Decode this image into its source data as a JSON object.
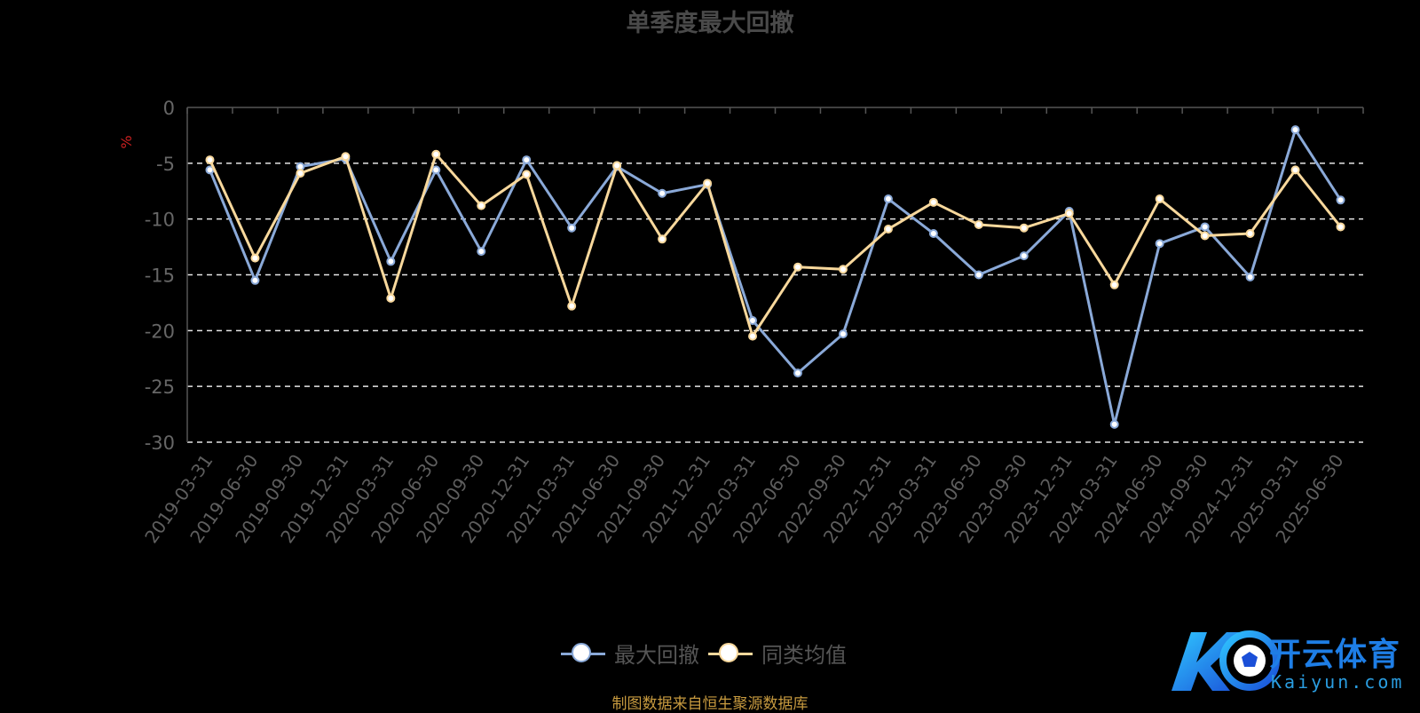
{
  "chart_data": {
    "type": "line",
    "title": "单季度最大回撤",
    "ylabel": "%",
    "ylim": [
      -30,
      0
    ],
    "yticks": [
      0,
      -5,
      -10,
      -15,
      -20,
      -25,
      -30
    ],
    "grid": true,
    "legend_position": "bottom-center",
    "categories": [
      "2019-03-31",
      "2019-06-30",
      "2019-09-30",
      "2019-12-31",
      "2020-03-31",
      "2020-06-30",
      "2020-09-30",
      "2020-12-31",
      "2021-03-31",
      "2021-06-30",
      "2021-09-30",
      "2021-12-31",
      "2022-03-31",
      "2022-06-30",
      "2022-09-30",
      "2022-12-31",
      "2023-03-31",
      "2023-06-30",
      "2023-09-30",
      "2023-12-31",
      "2024-03-31",
      "2024-06-30",
      "2024-09-30",
      "2024-12-31",
      "2025-03-31",
      "2025-06-30"
    ],
    "series": [
      {
        "name": "最大回撤",
        "color": "#8aa9d8",
        "values": [
          -5.6,
          -15.5,
          -5.3,
          -4.6,
          -13.8,
          -5.6,
          -12.9,
          -4.7,
          -10.8,
          -5.3,
          -7.7,
          -6.9,
          -19.1,
          -23.8,
          -20.3,
          -8.2,
          -11.3,
          -15.0,
          -13.3,
          -9.3,
          -28.4,
          -12.2,
          -10.7,
          -15.2,
          -2.0,
          -8.3
        ]
      },
      {
        "name": "同类均值",
        "color": "#f8d89c",
        "values": [
          -4.7,
          -13.5,
          -5.9,
          -4.4,
          -17.1,
          -4.2,
          -8.8,
          -6.0,
          -17.8,
          -5.2,
          -11.8,
          -6.8,
          -20.5,
          -14.3,
          -14.5,
          -10.9,
          -8.5,
          -10.5,
          -10.8,
          -9.5,
          -15.9,
          -8.2,
          -11.5,
          -11.3,
          -5.6,
          -10.7
        ]
      }
    ]
  },
  "source_note": "制图数据来自恒生聚源数据库",
  "brand": {
    "name": "开云体育",
    "domain": "Kaiyun.com"
  }
}
